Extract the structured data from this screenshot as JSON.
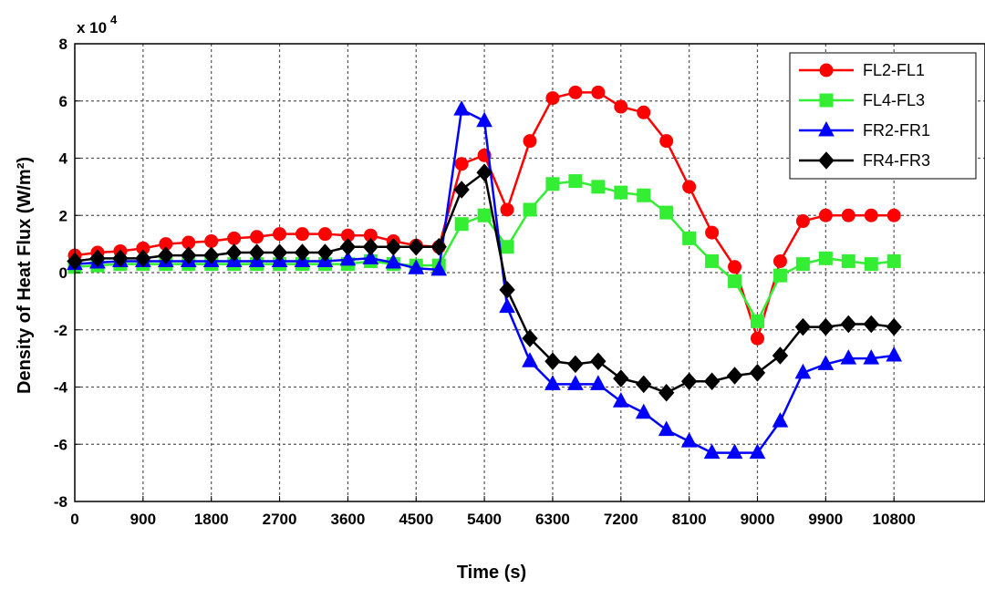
{
  "chart_data": {
    "type": "line",
    "title": "",
    "xlabel": "Time (s)",
    "ylabel": "Density of Heat Flux (W/m²)",
    "y_multiplier": "x 10",
    "y_multiplier_exp": "4",
    "xlim": [
      0,
      12000
    ],
    "ylim": [
      -8,
      8
    ],
    "x_ticks": [
      0,
      900,
      1800,
      2700,
      3600,
      4500,
      5400,
      6300,
      7200,
      8100,
      9000,
      9900,
      10800
    ],
    "y_ticks": [
      -8,
      -6,
      -4,
      -2,
      0,
      2,
      4,
      6,
      8
    ],
    "grid": true,
    "legend_position": "top-right",
    "x": [
      0,
      300,
      600,
      900,
      1200,
      1500,
      1800,
      2100,
      2400,
      2700,
      3000,
      3300,
      3600,
      3900,
      4200,
      4500,
      4800,
      5100,
      5400,
      5700,
      6000,
      6300,
      6600,
      6900,
      7200,
      7500,
      7800,
      8100,
      8400,
      8700,
      9000,
      9300,
      9600,
      9900,
      10200,
      10500,
      10800
    ],
    "series": [
      {
        "name": "FL2-FL1",
        "color": "#ff0000",
        "marker": "circle",
        "values": [
          0.6,
          0.7,
          0.75,
          0.85,
          1.0,
          1.05,
          1.1,
          1.2,
          1.25,
          1.35,
          1.35,
          1.35,
          1.3,
          1.3,
          1.1,
          0.95,
          0.9,
          3.8,
          4.1,
          2.2,
          4.6,
          6.1,
          6.3,
          6.3,
          5.8,
          5.6,
          4.6,
          3.0,
          1.4,
          0.2,
          -2.3,
          0.4,
          1.8,
          2.0,
          2.0,
          2.0,
          2.0
        ]
      },
      {
        "name": "FL4-FL3",
        "color": "#33ee33",
        "marker": "square",
        "values": [
          0.2,
          0.25,
          0.3,
          0.3,
          0.3,
          0.3,
          0.3,
          0.3,
          0.3,
          0.3,
          0.3,
          0.3,
          0.3,
          0.4,
          0.3,
          0.25,
          0.25,
          1.7,
          2.0,
          0.9,
          2.2,
          3.1,
          3.2,
          3.0,
          2.8,
          2.7,
          2.1,
          1.2,
          0.4,
          -0.3,
          -1.7,
          -0.1,
          0.3,
          0.5,
          0.4,
          0.3,
          0.4
        ]
      },
      {
        "name": "FR2-FR1",
        "color": "#0000ff",
        "marker": "triangle",
        "values": [
          0.3,
          0.35,
          0.4,
          0.4,
          0.4,
          0.4,
          0.4,
          0.4,
          0.4,
          0.4,
          0.4,
          0.4,
          0.45,
          0.5,
          0.35,
          0.15,
          0.1,
          5.7,
          5.3,
          -1.2,
          -3.1,
          -3.9,
          -3.9,
          -3.9,
          -4.5,
          -4.9,
          -5.5,
          -5.9,
          -6.3,
          -6.3,
          -6.3,
          -5.2,
          -3.5,
          -3.2,
          -3.0,
          -3.0,
          -2.9
        ]
      },
      {
        "name": "FR4-FR3",
        "color": "#000000",
        "marker": "diamond",
        "values": [
          0.4,
          0.5,
          0.5,
          0.5,
          0.6,
          0.6,
          0.6,
          0.7,
          0.7,
          0.7,
          0.7,
          0.7,
          0.9,
          0.9,
          0.9,
          0.9,
          0.9,
          2.9,
          3.5,
          -0.6,
          -2.3,
          -3.1,
          -3.2,
          -3.1,
          -3.7,
          -3.9,
          -4.2,
          -3.8,
          -3.8,
          -3.6,
          -3.5,
          -2.9,
          -1.9,
          -1.9,
          -1.8,
          -1.8,
          -1.9
        ]
      }
    ]
  }
}
